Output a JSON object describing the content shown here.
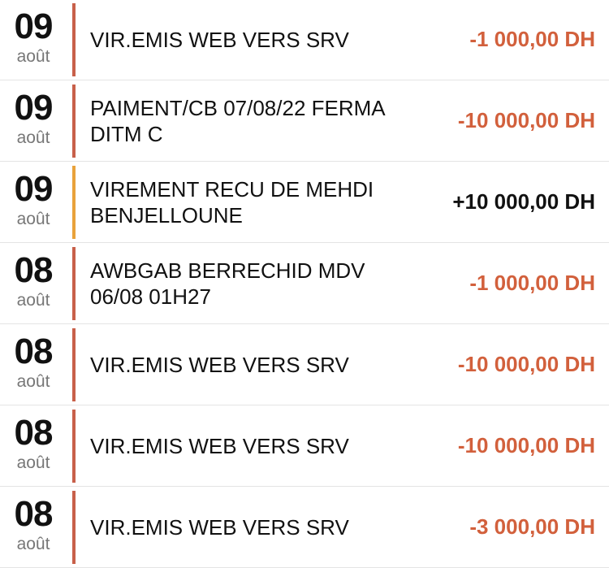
{
  "colors": {
    "debit": "#d2603c",
    "credit": "#111111",
    "debit_bar": "#c8604a",
    "credit_bar": "#e9a23b"
  },
  "transactions": [
    {
      "day": "09",
      "month": "août",
      "label": "VIR.EMIS WEB VERS SRV",
      "amount": "-1 000,00 DH",
      "type": "debit"
    },
    {
      "day": "09",
      "month": "août",
      "label": "PAIMENT/CB 07/08/22 FERMA DITM C",
      "amount": "-10 000,00 DH",
      "type": "debit"
    },
    {
      "day": "09",
      "month": "août",
      "label": "VIREMENT RECU DE MEHDI BENJELLOUNE",
      "amount": "+10 000,00 DH",
      "type": "credit"
    },
    {
      "day": "08",
      "month": "août",
      "label": "AWBGAB BERRECHID MDV 06/08 01H27",
      "amount": "-1 000,00 DH",
      "type": "debit"
    },
    {
      "day": "08",
      "month": "août",
      "label": "VIR.EMIS WEB VERS SRV",
      "amount": "-10 000,00 DH",
      "type": "debit"
    },
    {
      "day": "08",
      "month": "août",
      "label": "VIR.EMIS WEB VERS SRV",
      "amount": "-10 000,00 DH",
      "type": "debit"
    },
    {
      "day": "08",
      "month": "août",
      "label": "VIR.EMIS WEB VERS SRV",
      "amount": "-3 000,00 DH",
      "type": "debit"
    }
  ]
}
